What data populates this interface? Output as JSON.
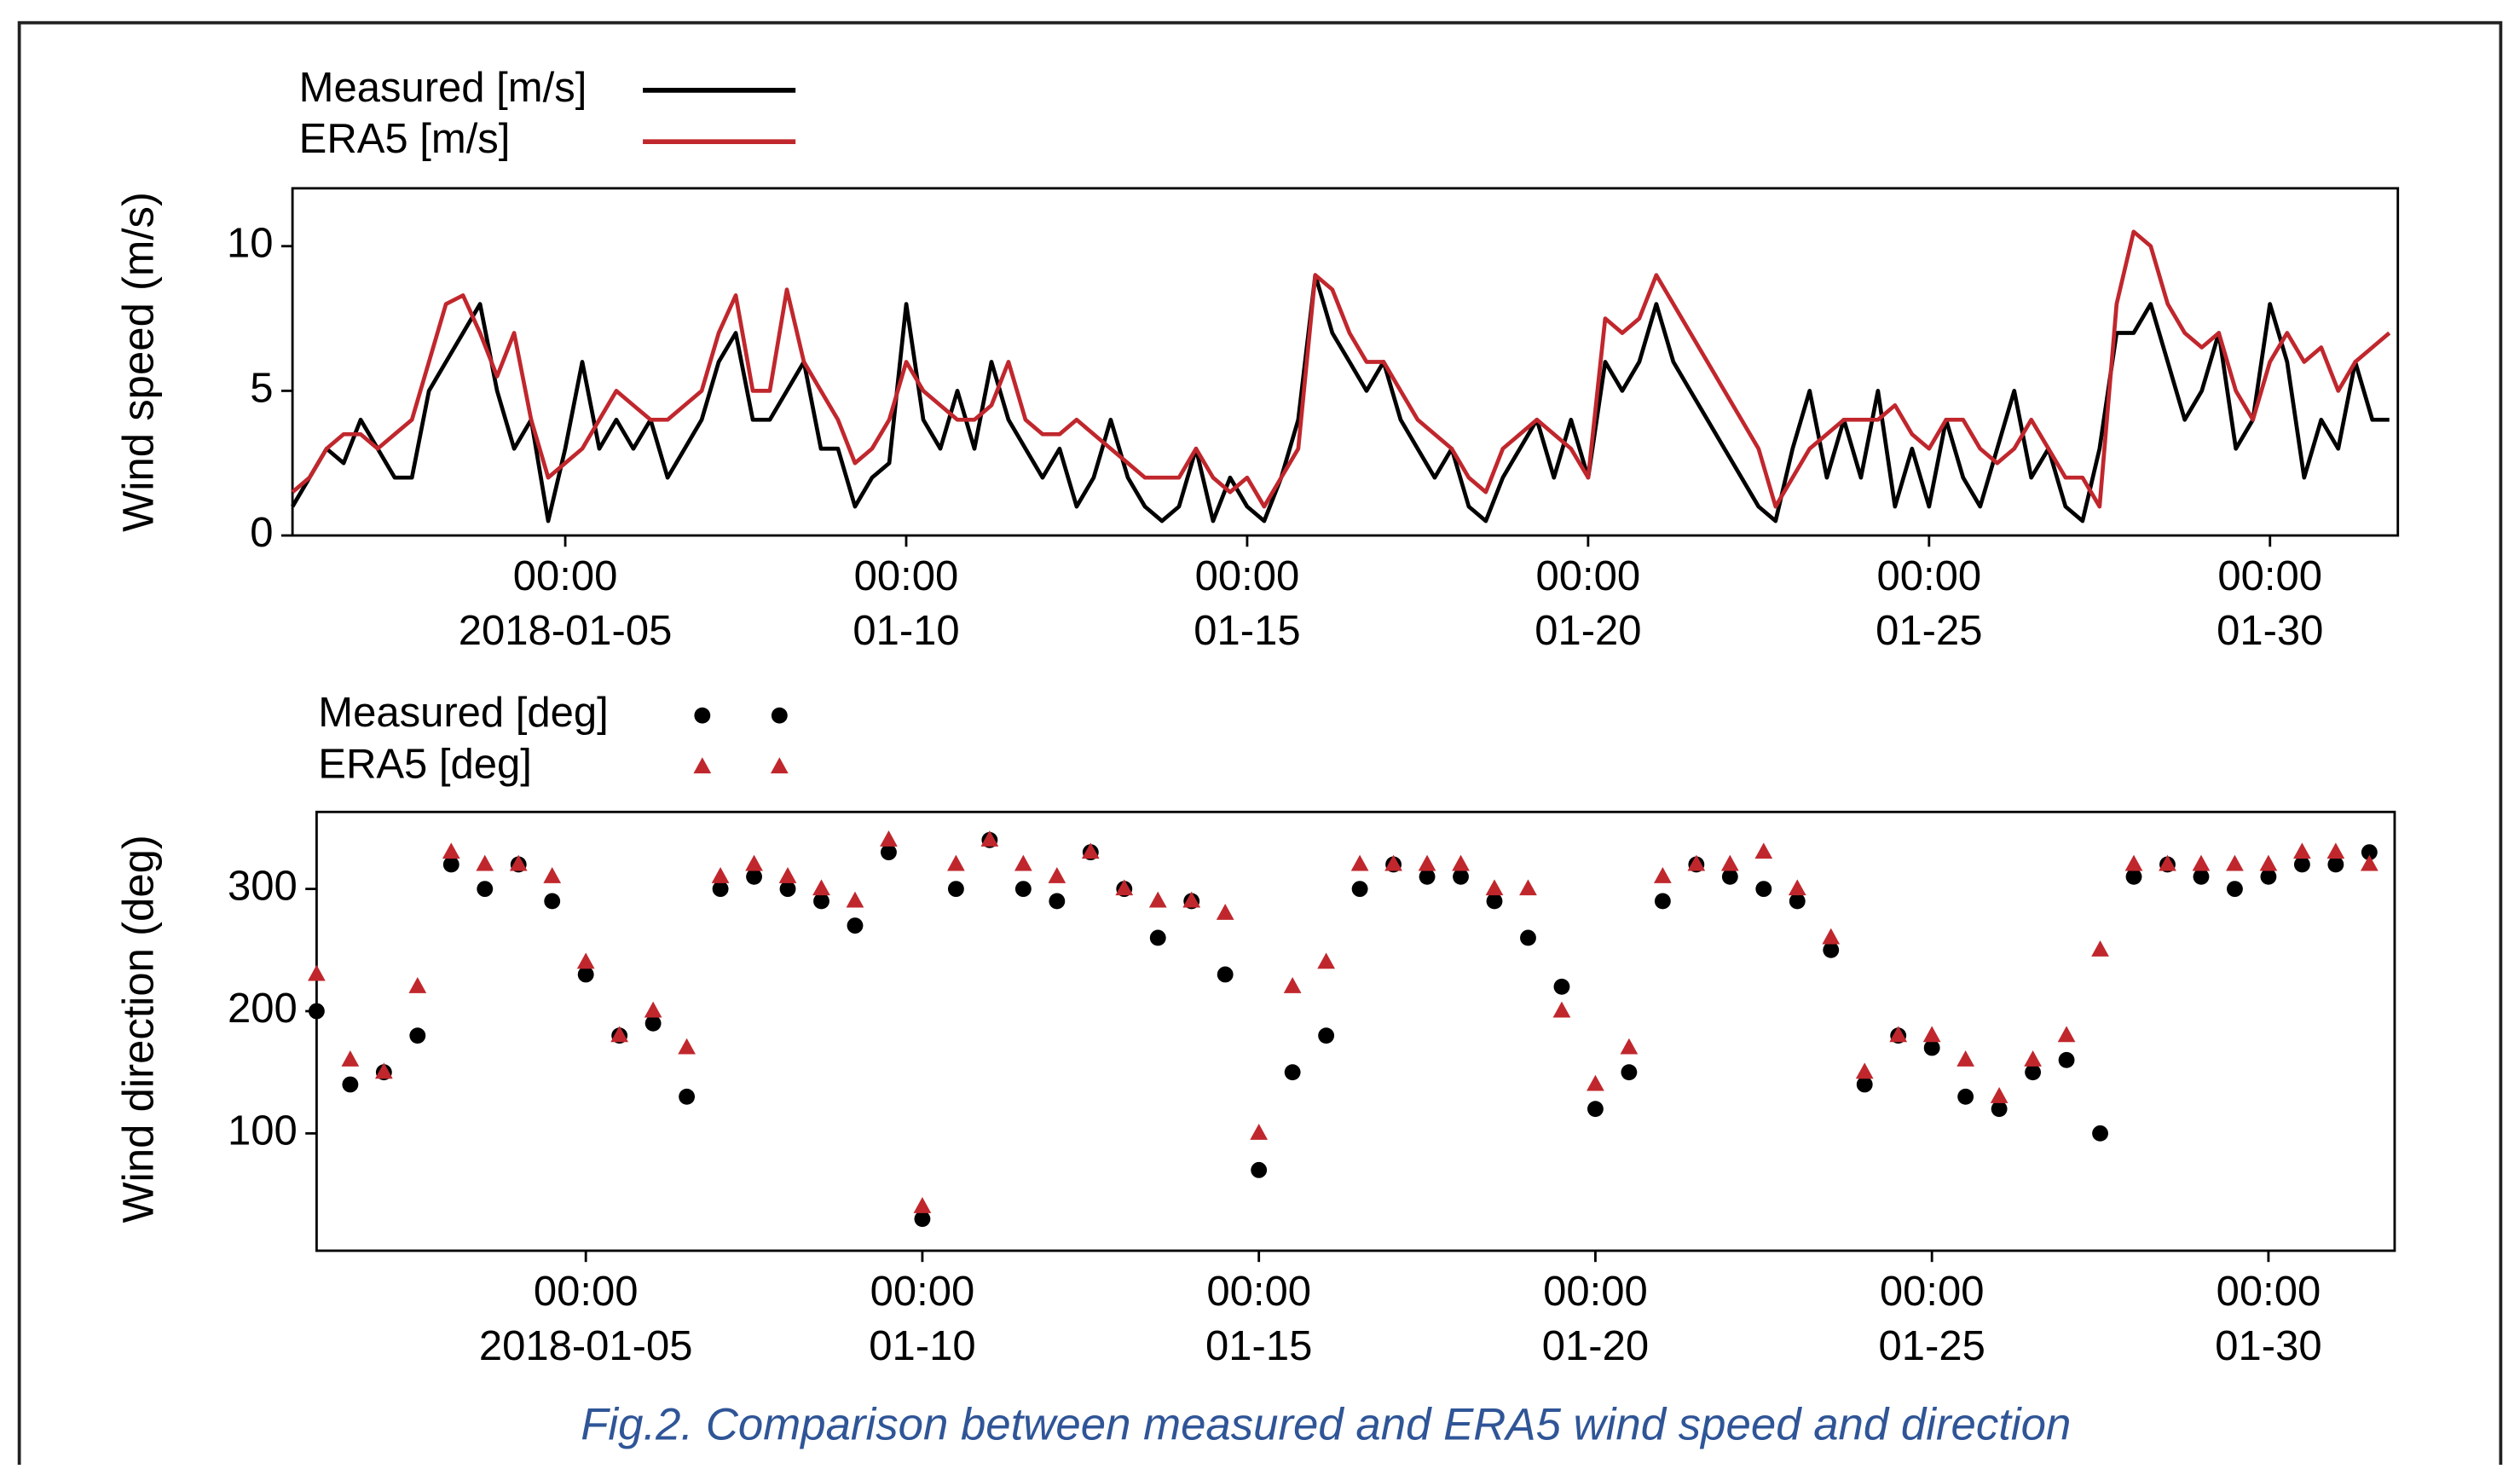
{
  "chart_data": [
    {
      "type": "line",
      "ylabel": "Wind speed (m/s)",
      "x": [
        "2018-01-01 00:00",
        "2018-01-01 06:00",
        "2018-01-01 12:00",
        "2018-01-01 18:00",
        "2018-01-02 00:00",
        "2018-01-02 06:00",
        "2018-01-02 12:00",
        "2018-01-02 18:00",
        "2018-01-03 00:00",
        "2018-01-03 06:00",
        "2018-01-03 12:00",
        "2018-01-03 18:00",
        "2018-01-04 00:00",
        "2018-01-04 06:00",
        "2018-01-04 12:00",
        "2018-01-04 18:00",
        "2018-01-05 00:00",
        "2018-01-05 06:00",
        "2018-01-05 12:00",
        "2018-01-05 18:00",
        "2018-01-06 00:00",
        "2018-01-06 06:00",
        "2018-01-06 12:00",
        "2018-01-06 18:00",
        "2018-01-07 00:00",
        "2018-01-07 06:00",
        "2018-01-07 12:00",
        "2018-01-07 18:00",
        "2018-01-08 00:00",
        "2018-01-08 06:00",
        "2018-01-08 12:00",
        "2018-01-08 18:00",
        "2018-01-09 00:00",
        "2018-01-09 06:00",
        "2018-01-09 12:00",
        "2018-01-09 18:00",
        "2018-01-10 00:00",
        "2018-01-10 06:00",
        "2018-01-10 12:00",
        "2018-01-10 18:00",
        "2018-01-11 00:00",
        "2018-01-11 06:00",
        "2018-01-11 12:00",
        "2018-01-11 18:00",
        "2018-01-12 00:00",
        "2018-01-12 06:00",
        "2018-01-12 12:00",
        "2018-01-12 18:00",
        "2018-01-13 00:00",
        "2018-01-13 06:00",
        "2018-01-13 12:00",
        "2018-01-13 18:00",
        "2018-01-14 00:00",
        "2018-01-14 06:00",
        "2018-01-14 12:00",
        "2018-01-14 18:00",
        "2018-01-15 00:00",
        "2018-01-15 06:00",
        "2018-01-15 12:00",
        "2018-01-15 18:00",
        "2018-01-16 00:00",
        "2018-01-16 06:00",
        "2018-01-16 12:00",
        "2018-01-16 18:00",
        "2018-01-17 00:00",
        "2018-01-17 06:00",
        "2018-01-17 12:00",
        "2018-01-17 18:00",
        "2018-01-18 00:00",
        "2018-01-18 06:00",
        "2018-01-18 12:00",
        "2018-01-18 18:00",
        "2018-01-19 00:00",
        "2018-01-19 06:00",
        "2018-01-19 12:00",
        "2018-01-19 18:00",
        "2018-01-20 00:00",
        "2018-01-20 06:00",
        "2018-01-20 12:00",
        "2018-01-20 18:00",
        "2018-01-21 00:00",
        "2018-01-21 06:00",
        "2018-01-21 12:00",
        "2018-01-21 18:00",
        "2018-01-22 00:00",
        "2018-01-22 06:00",
        "2018-01-22 12:00",
        "2018-01-22 18:00",
        "2018-01-23 00:00",
        "2018-01-23 06:00",
        "2018-01-23 12:00",
        "2018-01-23 18:00",
        "2018-01-24 00:00",
        "2018-01-24 06:00",
        "2018-01-24 12:00",
        "2018-01-24 18:00",
        "2018-01-25 00:00",
        "2018-01-25 06:00",
        "2018-01-25 12:00",
        "2018-01-25 18:00",
        "2018-01-26 00:00",
        "2018-01-26 06:00",
        "2018-01-26 12:00",
        "2018-01-26 18:00",
        "2018-01-27 00:00",
        "2018-01-27 06:00",
        "2018-01-27 12:00",
        "2018-01-27 18:00",
        "2018-01-28 00:00",
        "2018-01-28 06:00",
        "2018-01-28 12:00",
        "2018-01-28 18:00",
        "2018-01-29 00:00",
        "2018-01-29 06:00",
        "2018-01-29 12:00",
        "2018-01-29 18:00",
        "2018-01-30 00:00",
        "2018-01-30 06:00",
        "2018-01-30 12:00",
        "2018-01-30 18:00",
        "2018-01-31 00:00",
        "2018-01-31 06:00",
        "2018-01-31 12:00",
        "2018-01-31 18:00"
      ],
      "series": [
        {
          "name": "Measured [m/s]",
          "color": "#000000",
          "values": [
            1,
            2,
            3,
            2.5,
            4,
            3,
            2,
            2,
            5,
            6,
            7,
            8,
            5,
            3,
            4,
            0.5,
            3,
            6,
            3,
            4,
            3,
            4,
            2,
            3,
            4,
            6,
            7,
            4,
            4,
            5,
            6,
            3,
            3,
            1,
            2,
            2.5,
            8,
            4,
            3,
            5,
            3,
            6,
            4,
            3,
            2,
            3,
            1,
            2,
            4,
            2,
            1,
            0.5,
            1,
            3,
            0.5,
            2,
            1,
            0.5,
            2,
            4,
            9,
            7,
            6,
            5,
            6,
            4,
            3,
            2,
            3,
            1,
            0.5,
            2,
            3,
            4,
            2,
            4,
            2,
            6,
            5,
            6,
            8,
            6,
            5,
            4,
            3,
            2,
            1,
            0.5,
            3,
            5,
            2,
            4,
            2,
            5,
            1,
            3,
            1,
            4,
            2,
            1,
            3,
            5,
            2,
            3,
            1,
            0.5,
            3,
            7,
            7,
            8,
            6,
            4,
            5,
            7,
            3,
            4,
            8,
            6,
            2,
            4,
            3,
            6,
            4,
            4
          ]
        },
        {
          "name": "ERA5 [m/s]",
          "color": "#c0272d",
          "values": [
            1.5,
            2,
            3,
            3.5,
            3.5,
            3,
            3.5,
            4,
            6,
            8,
            8.3,
            7,
            5.5,
            7,
            4,
            2,
            2.5,
            3,
            4,
            5,
            4.5,
            4,
            4,
            4.5,
            5,
            7,
            8.3,
            5,
            5,
            8.5,
            6,
            5,
            4,
            2.5,
            3,
            4,
            6,
            5,
            4.5,
            4,
            4,
            4.5,
            6,
            4,
            3.5,
            3.5,
            4,
            3.5,
            3,
            2.5,
            2,
            2,
            2,
            3,
            2,
            1.5,
            2,
            1,
            2,
            3,
            9,
            8.5,
            7,
            6,
            6,
            5,
            4,
            3.5,
            3,
            2,
            1.5,
            3,
            3.5,
            4,
            3.5,
            3,
            2,
            7.5,
            7,
            7.5,
            9,
            8,
            7,
            6,
            5,
            4,
            3,
            1,
            2,
            3,
            3.5,
            4,
            4,
            4,
            4.5,
            3.5,
            3,
            4,
            4,
            3,
            2.5,
            3,
            4,
            3,
            2,
            2,
            1,
            8,
            10.5,
            10,
            8,
            7,
            6.5,
            7,
            5,
            4,
            6,
            7,
            6,
            6.5,
            5,
            6,
            6.5,
            7
          ]
        }
      ],
      "xlim": [
        "2018-01-01 00:00",
        "2018-01-31 21:00"
      ],
      "xticks": [
        {
          "value": "2018-01-05 00:00",
          "label": "00:00\n2018-01-05"
        },
        {
          "value": "2018-01-10 00:00",
          "label": "00:00\n01-10"
        },
        {
          "value": "2018-01-15 00:00",
          "label": "00:00\n01-15"
        },
        {
          "value": "2018-01-20 00:00",
          "label": "00:00\n01-20"
        },
        {
          "value": "2018-01-25 00:00",
          "label": "00:00\n01-25"
        },
        {
          "value": "2018-01-30 00:00",
          "label": "00:00\n01-30"
        }
      ],
      "ylim": [
        0,
        12
      ],
      "yticks": [
        0,
        5,
        10
      ],
      "legend": "top-left"
    },
    {
      "type": "scatter",
      "ylabel": "Wind direction (deg)",
      "x": [
        "2018-01-01 00:00",
        "2018-01-01 12:00",
        "2018-01-02 00:00",
        "2018-01-02 12:00",
        "2018-01-03 00:00",
        "2018-01-03 12:00",
        "2018-01-04 00:00",
        "2018-01-04 12:00",
        "2018-01-05 00:00",
        "2018-01-05 12:00",
        "2018-01-06 00:00",
        "2018-01-06 12:00",
        "2018-01-07 00:00",
        "2018-01-07 12:00",
        "2018-01-08 00:00",
        "2018-01-08 12:00",
        "2018-01-09 00:00",
        "2018-01-09 12:00",
        "2018-01-10 00:00",
        "2018-01-10 12:00",
        "2018-01-11 00:00",
        "2018-01-11 12:00",
        "2018-01-12 00:00",
        "2018-01-12 12:00",
        "2018-01-13 00:00",
        "2018-01-13 12:00",
        "2018-01-14 00:00",
        "2018-01-14 12:00",
        "2018-01-15 00:00",
        "2018-01-15 12:00",
        "2018-01-16 00:00",
        "2018-01-16 12:00",
        "2018-01-17 00:00",
        "2018-01-17 12:00",
        "2018-01-18 00:00",
        "2018-01-18 12:00",
        "2018-01-19 00:00",
        "2018-01-19 12:00",
        "2018-01-20 00:00",
        "2018-01-20 12:00",
        "2018-01-21 00:00",
        "2018-01-21 12:00",
        "2018-01-22 00:00",
        "2018-01-22 12:00",
        "2018-01-23 00:00",
        "2018-01-23 12:00",
        "2018-01-24 00:00",
        "2018-01-24 12:00",
        "2018-01-25 00:00",
        "2018-01-25 12:00",
        "2018-01-26 00:00",
        "2018-01-26 12:00",
        "2018-01-27 00:00",
        "2018-01-27 12:00",
        "2018-01-28 00:00",
        "2018-01-28 12:00",
        "2018-01-29 00:00",
        "2018-01-29 12:00",
        "2018-01-30 00:00",
        "2018-01-30 12:00",
        "2018-01-31 00:00",
        "2018-01-31 12:00"
      ],
      "series": [
        {
          "name": "Measured [deg]",
          "color": "#000000",
          "marker": "circle",
          "values": [
            200,
            140,
            150,
            180,
            320,
            300,
            320,
            290,
            230,
            180,
            190,
            130,
            300,
            310,
            300,
            290,
            270,
            330,
            30,
            300,
            340,
            300,
            290,
            330,
            300,
            260,
            290,
            230,
            70,
            150,
            180,
            300,
            320,
            310,
            310,
            290,
            260,
            220,
            120,
            150,
            290,
            320,
            310,
            300,
            290,
            250,
            140,
            180,
            170,
            130,
            120,
            150,
            160,
            100,
            310,
            320,
            310,
            300,
            310,
            320,
            320,
            330
          ]
        },
        {
          "name": "ERA5 [deg]",
          "color": "#c0272d",
          "marker": "triangle",
          "values": [
            230,
            160,
            150,
            220,
            330,
            320,
            320,
            310,
            240,
            180,
            200,
            170,
            310,
            320,
            310,
            300,
            290,
            340,
            40,
            320,
            340,
            320,
            310,
            330,
            300,
            290,
            290,
            280,
            100,
            220,
            240,
            320,
            320,
            320,
            320,
            300,
            300,
            200,
            140,
            170,
            310,
            320,
            320,
            330,
            300,
            260,
            150,
            180,
            180,
            160,
            130,
            160,
            180,
            250,
            320,
            320,
            320,
            320,
            320,
            330,
            330,
            320
          ]
        }
      ],
      "xlim": [
        "2018-01-01 00:00",
        "2018-01-31 21:00"
      ],
      "xticks": [
        {
          "value": "2018-01-05 00:00",
          "label": "00:00\n2018-01-05"
        },
        {
          "value": "2018-01-10 00:00",
          "label": "00:00\n01-10"
        },
        {
          "value": "2018-01-15 00:00",
          "label": "00:00\n01-15"
        },
        {
          "value": "2018-01-20 00:00",
          "label": "00:00\n01-20"
        },
        {
          "value": "2018-01-25 00:00",
          "label": "00:00\n01-25"
        },
        {
          "value": "2018-01-30 00:00",
          "label": "00:00\n01-30"
        }
      ],
      "ylim": [
        4,
        363
      ],
      "yticks": [
        100,
        200,
        300
      ],
      "legend": "top-left"
    }
  ],
  "caption": "Fig.2. Comparison between measured and ERA5 wind speed and direction"
}
